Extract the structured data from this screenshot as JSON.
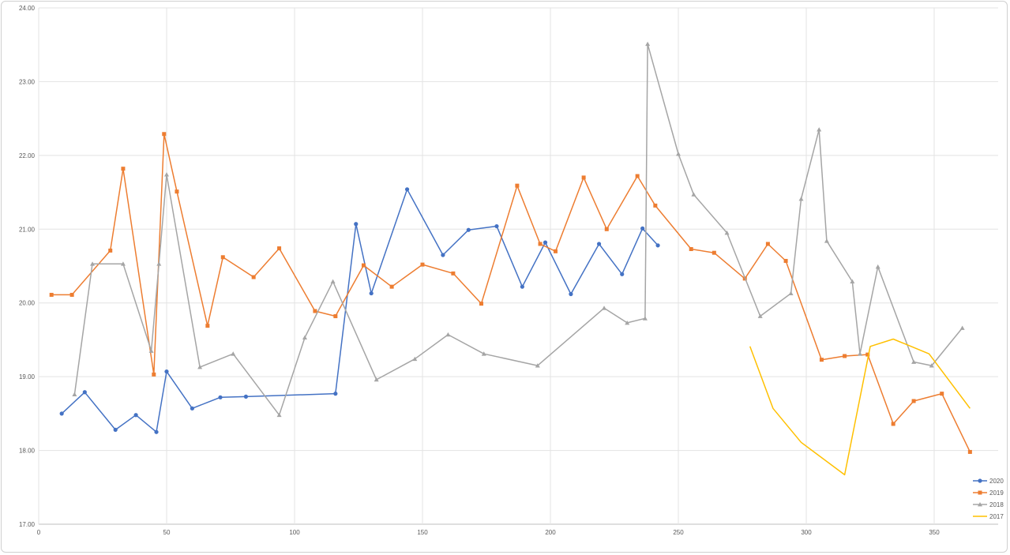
{
  "chart_data": {
    "type": "line",
    "title": "",
    "xlabel": "",
    "ylabel": "",
    "xlim": [
      0,
      375
    ],
    "ylim": [
      17,
      24
    ],
    "x_ticks": [
      0,
      50,
      100,
      150,
      200,
      250,
      300,
      350
    ],
    "y_ticks": [
      17,
      18,
      19,
      20,
      21,
      22,
      23,
      24
    ],
    "y_tick_labels": [
      "17.00",
      "18.00",
      "19.00",
      "20.00",
      "21.00",
      "22.00",
      "23.00",
      "24.00"
    ],
    "grid": true,
    "legend_position": "bottom-right",
    "series": [
      {
        "name": "2020",
        "color": "#4472C4",
        "marker": "circle",
        "points": [
          [
            9,
            18.5
          ],
          [
            18,
            18.79
          ],
          [
            30,
            18.28
          ],
          [
            38,
            18.48
          ],
          [
            46,
            18.25
          ],
          [
            50,
            19.07
          ],
          [
            60,
            18.57
          ],
          [
            71,
            18.72
          ],
          [
            81,
            18.73
          ],
          [
            116,
            18.77
          ],
          [
            124,
            21.07
          ],
          [
            130,
            20.13
          ],
          [
            144,
            21.54
          ],
          [
            158,
            20.65
          ],
          [
            168,
            20.99
          ],
          [
            179,
            21.04
          ],
          [
            189,
            20.22
          ],
          [
            198,
            20.82
          ],
          [
            208,
            20.12
          ],
          [
            219,
            20.8
          ],
          [
            228,
            20.39
          ],
          [
            236,
            21.01
          ],
          [
            242,
            20.78
          ]
        ]
      },
      {
        "name": "2019",
        "color": "#ED7D31",
        "marker": "square",
        "points": [
          [
            5,
            20.11
          ],
          [
            13,
            20.11
          ],
          [
            28,
            20.71
          ],
          [
            33,
            21.82
          ],
          [
            45,
            19.03
          ],
          [
            49,
            22.29
          ],
          [
            54,
            21.51
          ],
          [
            66,
            19.69
          ],
          [
            72,
            20.62
          ],
          [
            84,
            20.35
          ],
          [
            94,
            20.74
          ],
          [
            108,
            19.89
          ],
          [
            116,
            19.82
          ],
          [
            127,
            20.51
          ],
          [
            138,
            20.22
          ],
          [
            150,
            20.52
          ],
          [
            162,
            20.4
          ],
          [
            173,
            19.99
          ],
          [
            187,
            21.59
          ],
          [
            196,
            20.8
          ],
          [
            202,
            20.7
          ],
          [
            213,
            21.7
          ],
          [
            222,
            21.0
          ],
          [
            234,
            21.72
          ],
          [
            241,
            21.32
          ],
          [
            255,
            20.73
          ],
          [
            264,
            20.68
          ],
          [
            276,
            20.33
          ],
          [
            285,
            20.8
          ],
          [
            292,
            20.57
          ],
          [
            306,
            19.23
          ],
          [
            315,
            19.28
          ],
          [
            324,
            19.3
          ],
          [
            334,
            18.36
          ],
          [
            342,
            18.67
          ],
          [
            353,
            18.77
          ],
          [
            364,
            17.98
          ]
        ]
      },
      {
        "name": "2018",
        "color": "#A5A5A5",
        "marker": "triangle",
        "points": [
          [
            14,
            18.76
          ],
          [
            21,
            20.53
          ],
          [
            33,
            20.53
          ],
          [
            44,
            19.35
          ],
          [
            47,
            20.53
          ],
          [
            50,
            21.74
          ],
          [
            63,
            19.13
          ],
          [
            76,
            19.31
          ],
          [
            94,
            18.48
          ],
          [
            104,
            19.53
          ],
          [
            115,
            20.29
          ],
          [
            132,
            18.96
          ],
          [
            147,
            19.24
          ],
          [
            160,
            19.57
          ],
          [
            174,
            19.31
          ],
          [
            195,
            19.15
          ],
          [
            221,
            19.93
          ],
          [
            230,
            19.73
          ],
          [
            237,
            19.79
          ],
          [
            238,
            23.51
          ],
          [
            250,
            22.02
          ],
          [
            256,
            21.47
          ],
          [
            269,
            20.95
          ],
          [
            282,
            19.82
          ],
          [
            294,
            20.13
          ],
          [
            298,
            21.41
          ],
          [
            305,
            22.35
          ],
          [
            308,
            20.84
          ],
          [
            318,
            20.29
          ],
          [
            321,
            19.31
          ],
          [
            328,
            20.49
          ],
          [
            342,
            19.2
          ],
          [
            349,
            19.15
          ],
          [
            361,
            19.66
          ]
        ]
      },
      {
        "name": "2017",
        "color": "#FFC000",
        "marker": "none",
        "points": [
          [
            278,
            19.41
          ],
          [
            287,
            18.57
          ],
          [
            298,
            18.11
          ],
          [
            315,
            17.67
          ],
          [
            325,
            19.41
          ],
          [
            334,
            19.51
          ],
          [
            348,
            19.31
          ],
          [
            364,
            18.57
          ]
        ]
      }
    ]
  }
}
